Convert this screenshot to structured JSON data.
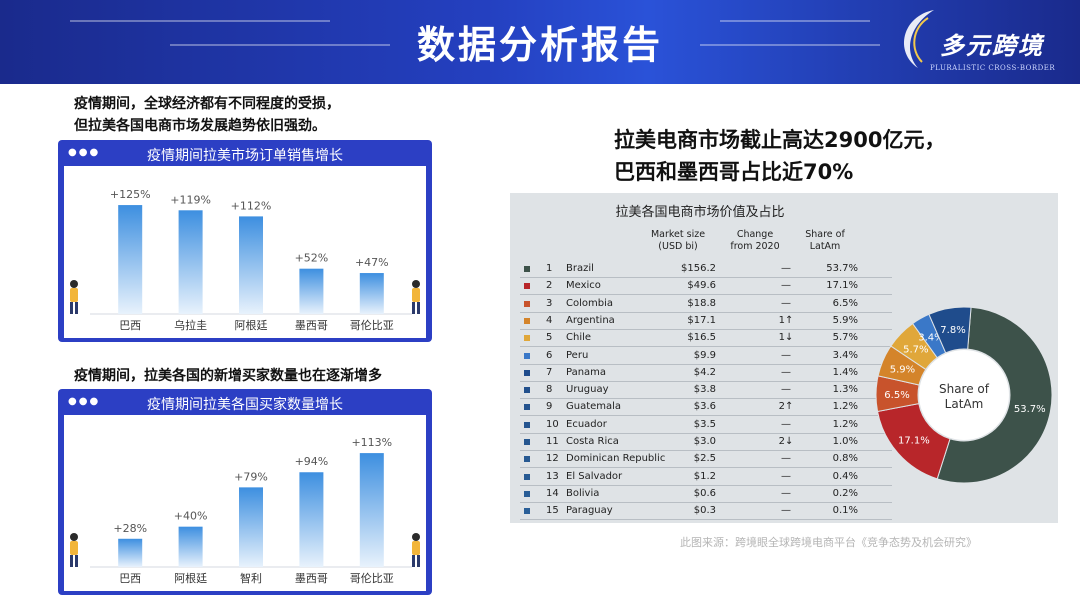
{
  "header": {
    "title": "数据分析报告"
  },
  "logo": {
    "text": "多元跨境",
    "subtitle": "PLURALISTIC CROSS-BORDER"
  },
  "left": {
    "text1_line1": "疫情期间，全球经济都有不同程度的受损，",
    "text1_line2": "但拉美各国电商市场发展趋势依旧强劲。",
    "text2": "疫情期间，拉美各国的新增买家数量也在逐渐增多"
  },
  "right": {
    "title_line1": "拉美电商市场截止高达2900亿元，",
    "title_line2": "巴西和墨西哥占比近70%",
    "source": "此图来源：跨境眼全球跨境电商平台《竞争态势及机会研究》"
  },
  "table": {
    "title": "拉美各国电商市场价值及占比",
    "headers": {
      "market_l1": "Market size",
      "market_l2": "(USD bi)",
      "change_l1": "Change",
      "change_l2": "from 2020",
      "share_l1": "Share of",
      "share_l2": "LatAm"
    },
    "rows": [
      {
        "rank": "1",
        "country": "Brazil",
        "market": "$156.2",
        "change": "—",
        "share": "53.7%",
        "color": "#3d524a"
      },
      {
        "rank": "2",
        "country": "Mexico",
        "market": "$49.6",
        "change": "—",
        "share": "17.1%",
        "color": "#b8262a"
      },
      {
        "rank": "3",
        "country": "Colombia",
        "market": "$18.8",
        "change": "—",
        "share": "6.5%",
        "color": "#c8532c"
      },
      {
        "rank": "4",
        "country": "Argentina",
        "market": "$17.1",
        "change": "1↑",
        "share": "5.9%",
        "color": "#d4842a"
      },
      {
        "rank": "5",
        "country": "Chile",
        "market": "$16.5",
        "change": "1↓",
        "share": "5.7%",
        "color": "#e0a73a"
      },
      {
        "rank": "6",
        "country": "Peru",
        "market": "$9.9",
        "change": "—",
        "share": "3.4%",
        "color": "#3a78c8"
      },
      {
        "rank": "7",
        "country": "Panama",
        "market": "$4.2",
        "change": "—",
        "share": "1.4%",
        "color": "#1f4c8c"
      },
      {
        "rank": "8",
        "country": "Uruguay",
        "market": "$3.8",
        "change": "—",
        "share": "1.3%",
        "color": "#22508c"
      },
      {
        "rank": "9",
        "country": "Guatemala",
        "market": "$3.6",
        "change": "2↑",
        "share": "1.2%",
        "color": "#24538e"
      },
      {
        "rank": "10",
        "country": "Ecuador",
        "market": "$3.5",
        "change": "—",
        "share": "1.2%",
        "color": "#255590"
      },
      {
        "rank": "11",
        "country": "Costa Rica",
        "market": "$3.0",
        "change": "2↓",
        "share": "1.0%",
        "color": "#265790"
      },
      {
        "rank": "12",
        "country": "Dominican Republic",
        "market": "$2.5",
        "change": "—",
        "share": "0.8%",
        "color": "#275992"
      },
      {
        "rank": "13",
        "country": "El Salvador",
        "market": "$1.2",
        "change": "—",
        "share": "0.4%",
        "color": "#285b94"
      },
      {
        "rank": "14",
        "country": "Bolivia",
        "market": "$0.6",
        "change": "—",
        "share": "0.2%",
        "color": "#295d96"
      },
      {
        "rank": "15",
        "country": "Paraguay",
        "market": "$0.3",
        "change": "—",
        "share": "0.1%",
        "color": "#2a5f98"
      }
    ]
  },
  "chart_data": [
    {
      "type": "bar",
      "title": "疫情期间拉美市场订单销售增长",
      "categories": [
        "巴西",
        "乌拉圭",
        "阿根廷",
        "墨西哥",
        "哥伦比亚"
      ],
      "values": [
        125,
        119,
        112,
        52,
        47
      ],
      "labels": [
        "+125%",
        "+119%",
        "+112%",
        "+52%",
        "+47%"
      ],
      "ylim": [
        0,
        140
      ],
      "grid": false,
      "bar_color": "#3d8fe0"
    },
    {
      "type": "bar",
      "title": "疫情期间拉美各国买家数量增长",
      "categories": [
        "巴西",
        "阿根廷",
        "智利",
        "墨西哥",
        "哥伦比亚"
      ],
      "values": [
        28,
        40,
        79,
        94,
        113
      ],
      "labels": [
        "+28%",
        "+40%",
        "+79%",
        "+94%",
        "+113%"
      ],
      "ylim": [
        0,
        125
      ],
      "grid": false,
      "bar_color": "#3d8fe0"
    },
    {
      "type": "pie",
      "center_label": "Share of LatAm",
      "slices": [
        {
          "label": "53.7%",
          "value": 53.7,
          "color": "#3d524a"
        },
        {
          "label": "17.1%",
          "value": 17.1,
          "color": "#b8262a"
        },
        {
          "label": "6.5%",
          "value": 6.5,
          "color": "#c8532c"
        },
        {
          "label": "5.9%",
          "value": 5.9,
          "color": "#d4842a"
        },
        {
          "label": "5.7%",
          "value": 5.7,
          "color": "#e0a73a"
        },
        {
          "label": "3.4%",
          "value": 3.4,
          "color": "#3a78c8"
        },
        {
          "label": "7.8%",
          "value": 7.8,
          "color": "#1f4c8c"
        }
      ]
    }
  ]
}
